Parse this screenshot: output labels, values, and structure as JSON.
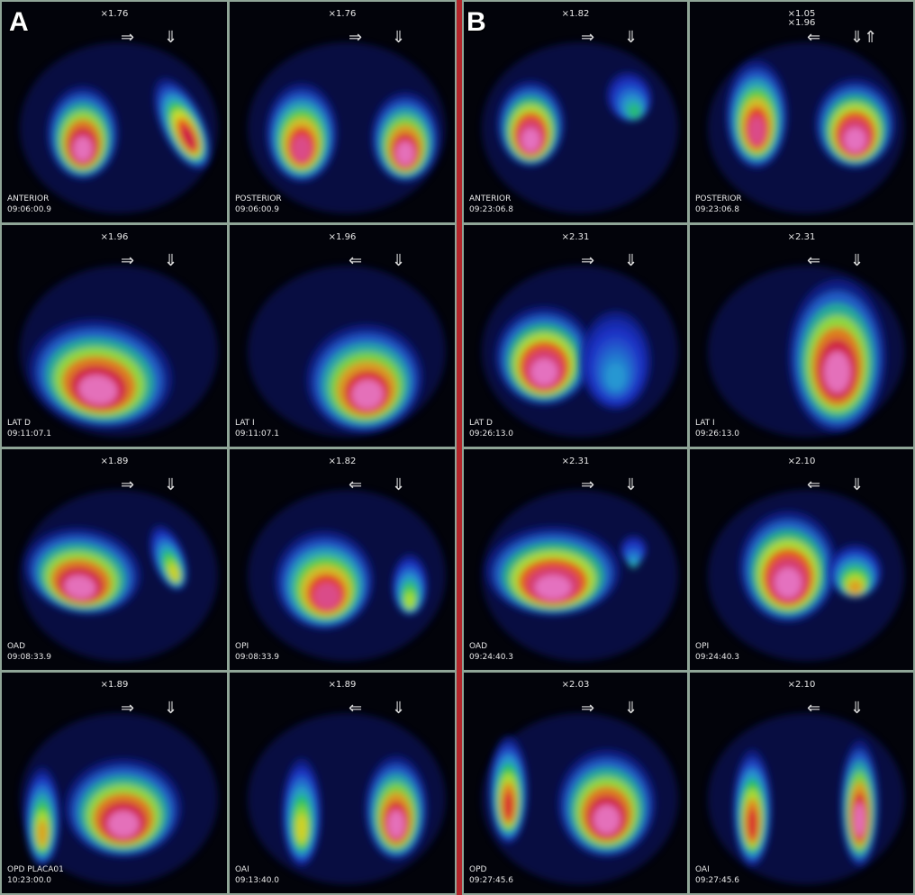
{
  "panels": [
    {
      "letter": "A",
      "tiles": [
        {
          "zoom": "×1.76",
          "arrow_h": "⇒",
          "arrow_v": "⇓",
          "view": "ANTERIOR",
          "time": "09:06:00.9"
        },
        {
          "zoom": "×1.76",
          "arrow_h": "⇒",
          "arrow_v": "⇓",
          "view": "POSTERIOR",
          "time": "09:06:00.9"
        },
        {
          "zoom": "×1.96",
          "arrow_h": "⇒",
          "arrow_v": "⇓",
          "view": "LAT D",
          "time": "09:11:07.1"
        },
        {
          "zoom": "×1.96",
          "arrow_h": "⇐",
          "arrow_v": "⇓",
          "view": "LAT I",
          "time": "09:11:07.1"
        },
        {
          "zoom": "×1.89",
          "arrow_h": "⇒",
          "arrow_v": "⇓",
          "view": "OAD",
          "time": "09:08:33.9"
        },
        {
          "zoom": "×1.82",
          "arrow_h": "⇐",
          "arrow_v": "⇓",
          "view": "OPI",
          "time": "09:08:33.9"
        },
        {
          "zoom": "×1.89",
          "arrow_h": "⇒",
          "arrow_v": "⇓",
          "view": "OPD PLACA01",
          "time": "10:23:00.0"
        },
        {
          "zoom": "×1.89",
          "arrow_h": "⇐",
          "arrow_v": "⇓",
          "view": "OAI",
          "time": "09:13:40.0"
        }
      ]
    },
    {
      "letter": "B",
      "tiles": [
        {
          "zoom": "×1.82",
          "arrow_h": "⇒",
          "arrow_v": "⇓",
          "view": "ANTERIOR",
          "time": "09:23:06.8"
        },
        {
          "zoom": "×1.05",
          "zoom_b": "×1.96",
          "arrow_h": "⇐",
          "arrow_v": "⇓⇑",
          "view": "POSTERIOR",
          "time": "09:23:06.8"
        },
        {
          "zoom": "×2.31",
          "arrow_h": "⇒",
          "arrow_v": "⇓",
          "view": "LAT D",
          "time": "09:26:13.0"
        },
        {
          "zoom": "×2.31",
          "arrow_h": "⇐",
          "arrow_v": "⇓",
          "view": "LAT I",
          "time": "09:26:13.0"
        },
        {
          "zoom": "×2.31",
          "arrow_h": "⇒",
          "arrow_v": "⇓",
          "view": "OAD",
          "time": "09:24:40.3"
        },
        {
          "zoom": "×2.10",
          "arrow_h": "⇐",
          "arrow_v": "⇓",
          "view": "OPI",
          "time": "09:24:40.3"
        },
        {
          "zoom": "×2.03",
          "arrow_h": "⇒",
          "arrow_v": "⇓",
          "view": "OPD",
          "time": "09:27:45.6"
        },
        {
          "zoom": "×2.10",
          "arrow_h": "⇐",
          "arrow_v": "⇓",
          "view": "OAI",
          "time": "09:27:45.6"
        }
      ]
    }
  ],
  "colors": {
    "divider": "#b3262b",
    "grid": "#8fa597",
    "background": "#02030a"
  }
}
